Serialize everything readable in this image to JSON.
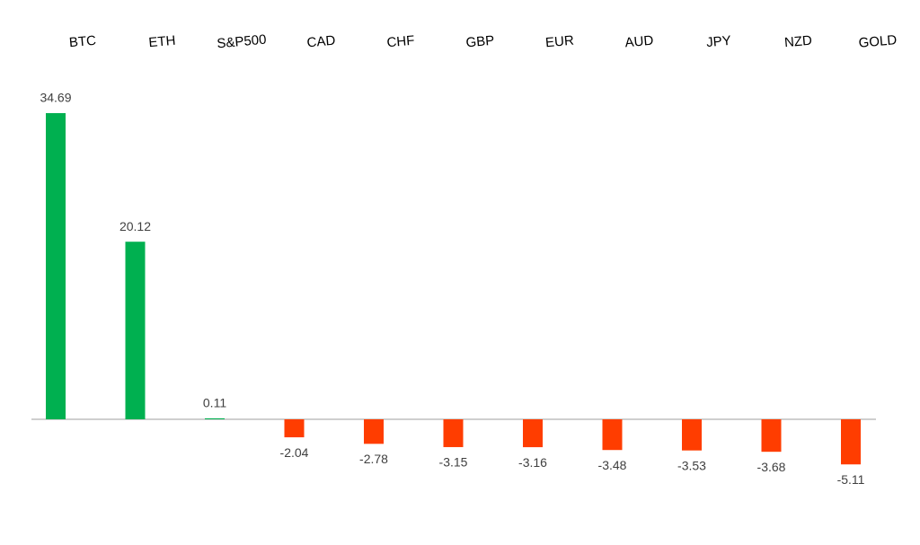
{
  "chart_data": {
    "type": "bar",
    "categories": [
      "BTC",
      "ETH",
      "S&P500",
      "CAD",
      "CHF",
      "GBP",
      "EUR",
      "AUD",
      "JPY",
      "NZD",
      "GOLD"
    ],
    "values": [
      34.69,
      20.12,
      0.11,
      -2.04,
      -2.78,
      -3.15,
      -3.16,
      -3.48,
      -3.53,
      -3.68,
      -5.11
    ],
    "positive_color": "#00b050",
    "negative_color": "#ff3d00"
  }
}
